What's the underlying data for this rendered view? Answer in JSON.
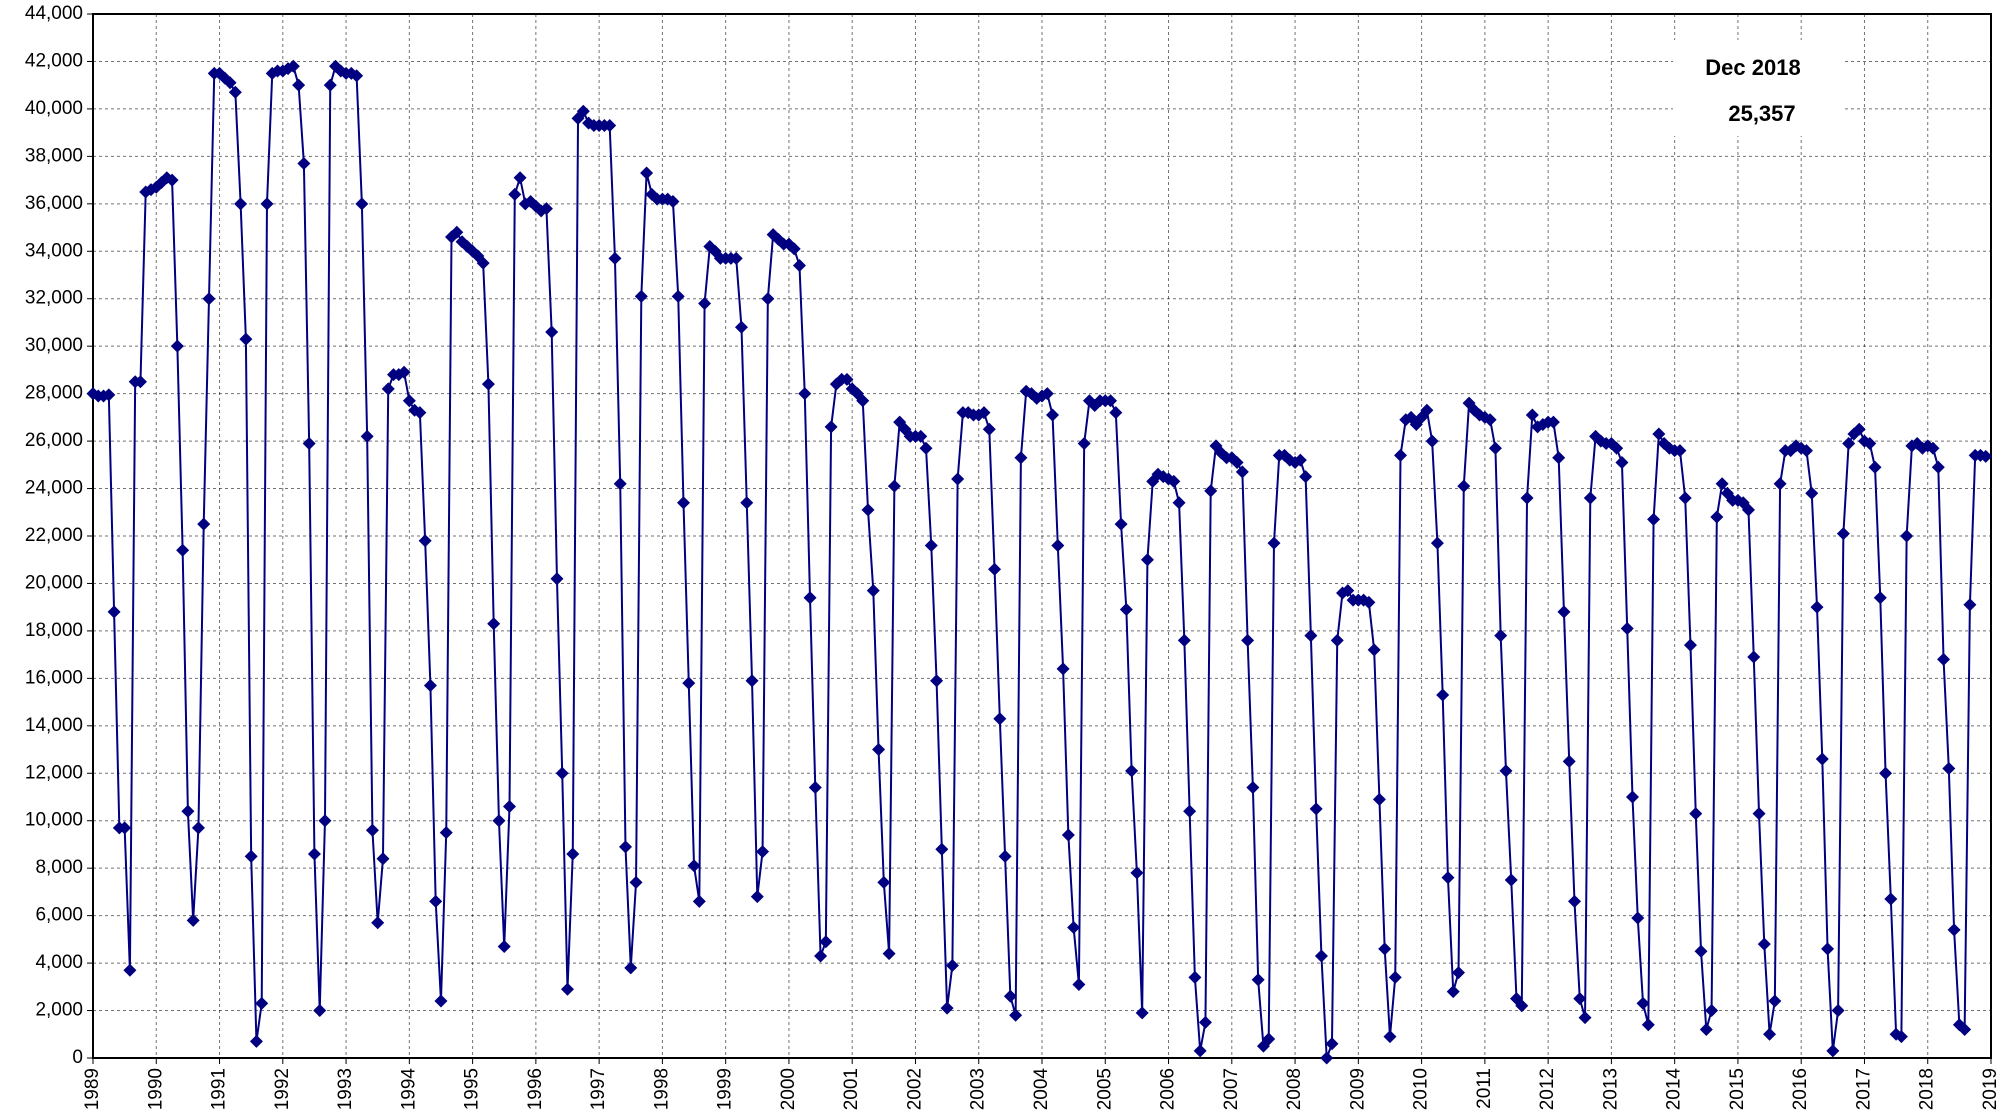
{
  "chart_data": {
    "type": "line",
    "color": "#000080",
    "grid": true,
    "annotations": [
      "Dec 2018",
      "25,357"
    ],
    "xlim": [
      1989,
      2019
    ],
    "xticks": [
      1989,
      1990,
      1991,
      1992,
      1993,
      1994,
      1995,
      1996,
      1997,
      1998,
      1999,
      2000,
      2001,
      2002,
      2003,
      2004,
      2005,
      2006,
      2007,
      2008,
      2009,
      2010,
      2011,
      2012,
      2013,
      2014,
      2015,
      2016,
      2017,
      2018,
      2019
    ],
    "ylim": [
      0,
      44000
    ],
    "yticks": [
      0,
      {
        "value": 2000,
        "label": "2,000"
      },
      {
        "value": 4000,
        "label": "4,000"
      },
      {
        "value": 6000,
        "label": "6,000"
      },
      {
        "value": 8000,
        "label": "8,000"
      },
      {
        "value": 10000,
        "label": "10,000"
      },
      {
        "value": 12000,
        "label": "12,000"
      },
      {
        "value": 14000,
        "label": "14,000"
      },
      {
        "value": 16000,
        "label": "16,000"
      },
      {
        "value": 18000,
        "label": "18,000"
      },
      {
        "value": 20000,
        "label": "20,000"
      },
      {
        "value": 22000,
        "label": "22,000"
      },
      {
        "value": 24000,
        "label": "24,000"
      },
      {
        "value": 26000,
        "label": "26,000"
      },
      {
        "value": 28000,
        "label": "28,000"
      },
      {
        "value": 30000,
        "label": "30,000"
      },
      {
        "value": 32000,
        "label": "32,000"
      },
      {
        "value": 34000,
        "label": "34,000"
      },
      {
        "value": 36000,
        "label": "36,000"
      },
      {
        "value": 38000,
        "label": "38,000"
      },
      {
        "value": 40000,
        "label": "40,000"
      },
      {
        "value": 42000,
        "label": "42,000"
      },
      {
        "value": 44000,
        "label": "44,000"
      }
    ],
    "values": [
      28000,
      27900,
      27900,
      27950,
      18800,
      9700,
      9700,
      3700,
      28500,
      28500,
      36500,
      36600,
      36700,
      36900,
      37100,
      37000,
      30000,
      21400,
      10400,
      5800,
      9700,
      22500,
      32000,
      41500,
      41500,
      41300,
      41100,
      40700,
      36000,
      30300,
      8500,
      700,
      2300,
      36000,
      41500,
      41600,
      41600,
      41700,
      41800,
      41000,
      37700,
      25900,
      8600,
      2000,
      10000,
      41000,
      41800,
      41600,
      41500,
      41500,
      41400,
      36000,
      26200,
      9600,
      5700,
      8400,
      28200,
      28800,
      28800,
      28900,
      27700,
      27300,
      27200,
      21800,
      15700,
      6600,
      2400,
      9500,
      34600,
      34800,
      34400,
      34200,
      34000,
      33800,
      33500,
      28400,
      18300,
      10000,
      4700,
      10600,
      36400,
      37100,
      36000,
      36100,
      35900,
      35700,
      35800,
      30600,
      20200,
      12000,
      2900,
      8600,
      39600,
      39900,
      39400,
      39300,
      39300,
      39300,
      39300,
      33700,
      24200,
      8900,
      3800,
      7400,
      32100,
      37300,
      36400,
      36200,
      36200,
      36200,
      36100,
      32100,
      23400,
      15800,
      8100,
      6600,
      31800,
      34200,
      34000,
      33700,
      33700,
      33700,
      33700,
      30800,
      23400,
      15900,
      6800,
      8700,
      32000,
      34700,
      34500,
      34300,
      34300,
      34100,
      33400,
      28000,
      19400,
      11400,
      4300,
      4900,
      26600,
      28400,
      28600,
      28600,
      28200,
      28000,
      27700,
      23100,
      19700,
      13000,
      7400,
      4400,
      24100,
      26800,
      26500,
      26200,
      26200,
      26200,
      25700,
      21600,
      15900,
      8800,
      2100,
      3900,
      24400,
      27200,
      27200,
      27100,
      27100,
      27200,
      26500,
      20600,
      14300,
      8500,
      2600,
      1800,
      25300,
      28100,
      28000,
      27800,
      27900,
      28000,
      27100,
      21600,
      16400,
      9400,
      5500,
      3100,
      25900,
      27700,
      27500,
      27700,
      27700,
      27700,
      27200,
      22500,
      18900,
      12100,
      7800,
      1900,
      21000,
      24300,
      24600,
      24500,
      24400,
      24300,
      23400,
      17600,
      10400,
      3400,
      300,
      1500,
      23900,
      25800,
      25500,
      25300,
      25300,
      25100,
      24700,
      17600,
      11400,
      3300,
      500,
      800,
      21700,
      25400,
      25400,
      25200,
      25100,
      25200,
      24500,
      17800,
      10500,
      4300,
      0,
      600,
      17600,
      19600,
      19700,
      19300,
      19300,
      19300,
      19200,
      17200,
      10900,
      4600,
      900,
      3400,
      25400,
      26900,
      27000,
      26700,
      27000,
      27300,
      26000,
      21700,
      15300,
      7600,
      2800,
      3600,
      24100,
      27600,
      27300,
      27100,
      27000,
      26900,
      25700,
      17800,
      12100,
      7500,
      2500,
      2200,
      23600,
      27100,
      26600,
      26700,
      26800,
      26800,
      25300,
      18800,
      12500,
      6600,
      2500,
      1700,
      23600,
      26200,
      26000,
      25900,
      25900,
      25700,
      25100,
      18100,
      11000,
      5900,
      2300,
      1400,
      22700,
      26300,
      25900,
      25700,
      25600,
      25600,
      23600,
      17400,
      10300,
      4500,
      1200,
      2000,
      22800,
      24200,
      23800,
      23500,
      23500,
      23400,
      23100,
      16900,
      10300,
      4800,
      1000,
      2400,
      24200,
      25600,
      25600,
      25800,
      25700,
      25600,
      23800,
      19000,
      12600,
      4600,
      300,
      2000,
      22100,
      25900,
      26300,
      26500,
      26000,
      25900,
      24900,
      19400,
      12000,
      6700,
      1000,
      900,
      22000,
      25800,
      25900,
      25700,
      25800,
      25700,
      24900,
      16800,
      12200,
      5400,
      1400,
      1200,
      19100,
      25400,
      25400,
      25357
    ]
  }
}
